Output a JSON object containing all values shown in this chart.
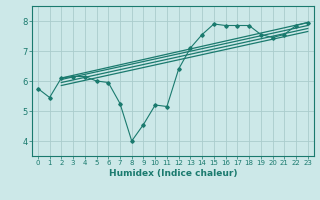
{
  "xlabel": "Humidex (Indice chaleur)",
  "ylabel": "",
  "xlim": [
    -0.5,
    23.5
  ],
  "ylim": [
    3.5,
    8.5
  ],
  "yticks": [
    4,
    5,
    6,
    7,
    8
  ],
  "xticks": [
    0,
    1,
    2,
    3,
    4,
    5,
    6,
    7,
    8,
    9,
    10,
    11,
    12,
    13,
    14,
    15,
    16,
    17,
    18,
    19,
    20,
    21,
    22,
    23
  ],
  "bg_color": "#cce8e8",
  "grid_color": "#aacccc",
  "line_color": "#1a7a6e",
  "lines": [
    {
      "x": [
        0,
        1,
        2,
        3,
        4,
        5,
        6,
        7,
        8,
        9,
        10,
        11,
        12,
        13,
        14,
        15,
        16,
        17,
        18,
        19,
        20,
        21,
        22,
        23
      ],
      "y": [
        5.75,
        5.45,
        6.1,
        6.15,
        6.15,
        6.0,
        5.95,
        5.25,
        4.0,
        4.55,
        5.2,
        5.15,
        6.4,
        7.1,
        7.55,
        7.9,
        7.85,
        7.85,
        7.85,
        7.55,
        7.45,
        7.55,
        7.85,
        7.95
      ],
      "with_markers": true
    },
    {
      "x": [
        2.0,
        23.0
      ],
      "y": [
        6.1,
        7.95
      ],
      "with_markers": false
    },
    {
      "x": [
        2.0,
        23.0
      ],
      "y": [
        6.05,
        7.85
      ],
      "with_markers": false
    },
    {
      "x": [
        2.0,
        23.0
      ],
      "y": [
        5.95,
        7.75
      ],
      "with_markers": false
    },
    {
      "x": [
        2.0,
        23.0
      ],
      "y": [
        5.85,
        7.65
      ],
      "with_markers": false
    }
  ]
}
